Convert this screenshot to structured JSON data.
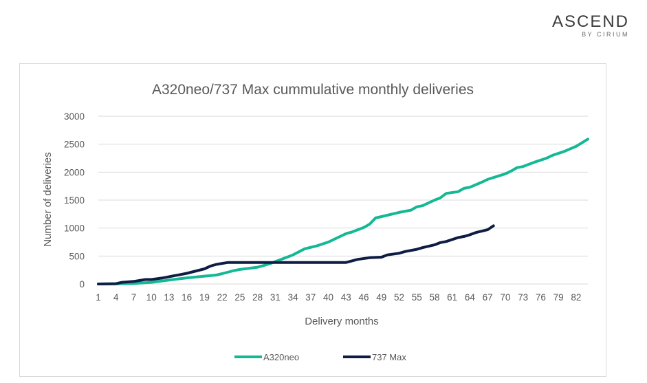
{
  "brand": {
    "name": "ASCEND",
    "sub": "BY CIRIUM"
  },
  "chart_data": {
    "type": "line",
    "title": "A320neo/737 Max cummulative monthly deliveries",
    "xlabel": "Delivery months",
    "ylabel": "Number of deliveries",
    "ylim": [
      0,
      3000
    ],
    "yticks": [
      0,
      500,
      1000,
      1500,
      2000,
      2500,
      3000
    ],
    "xlim": [
      1,
      84
    ],
    "xticks": [
      1,
      4,
      7,
      10,
      13,
      16,
      19,
      22,
      25,
      28,
      31,
      34,
      37,
      40,
      43,
      46,
      49,
      52,
      55,
      58,
      61,
      64,
      67,
      70,
      73,
      76,
      79,
      82
    ],
    "grid": "horizontal",
    "legend": "bottom",
    "series": [
      {
        "name": "A320neo",
        "color": "#14b894",
        "points": [
          [
            1,
            0
          ],
          [
            4,
            3
          ],
          [
            7,
            10
          ],
          [
            10,
            30
          ],
          [
            13,
            70
          ],
          [
            16,
            110
          ],
          [
            19,
            140
          ],
          [
            21,
            160
          ],
          [
            22,
            185
          ],
          [
            24,
            240
          ],
          [
            25,
            260
          ],
          [
            28,
            300
          ],
          [
            30,
            360
          ],
          [
            31,
            400
          ],
          [
            34,
            520
          ],
          [
            36,
            630
          ],
          [
            38,
            680
          ],
          [
            40,
            750
          ],
          [
            43,
            900
          ],
          [
            44,
            930
          ],
          [
            46,
            1010
          ],
          [
            47,
            1070
          ],
          [
            48,
            1180
          ],
          [
            50,
            1230
          ],
          [
            52,
            1280
          ],
          [
            54,
            1320
          ],
          [
            55,
            1380
          ],
          [
            56,
            1400
          ],
          [
            58,
            1500
          ],
          [
            59,
            1540
          ],
          [
            60,
            1620
          ],
          [
            62,
            1650
          ],
          [
            63,
            1710
          ],
          [
            64,
            1730
          ],
          [
            66,
            1820
          ],
          [
            67,
            1870
          ],
          [
            70,
            1970
          ],
          [
            71,
            2020
          ],
          [
            72,
            2080
          ],
          [
            73,
            2100
          ],
          [
            75,
            2180
          ],
          [
            77,
            2250
          ],
          [
            78,
            2300
          ],
          [
            80,
            2370
          ],
          [
            82,
            2460
          ],
          [
            84,
            2590
          ]
        ]
      },
      {
        "name": "737 Max",
        "color": "#0f1d45",
        "points": [
          [
            1,
            0
          ],
          [
            4,
            5
          ],
          [
            5,
            30
          ],
          [
            7,
            45
          ],
          [
            9,
            80
          ],
          [
            10,
            80
          ],
          [
            12,
            110
          ],
          [
            13,
            130
          ],
          [
            15,
            170
          ],
          [
            16,
            190
          ],
          [
            19,
            270
          ],
          [
            20,
            320
          ],
          [
            21,
            350
          ],
          [
            23,
            385
          ],
          [
            43,
            385
          ],
          [
            45,
            440
          ],
          [
            47,
            470
          ],
          [
            49,
            480
          ],
          [
            50,
            520
          ],
          [
            52,
            550
          ],
          [
            53,
            580
          ],
          [
            55,
            620
          ],
          [
            56,
            650
          ],
          [
            58,
            700
          ],
          [
            59,
            740
          ],
          [
            60,
            760
          ],
          [
            62,
            830
          ],
          [
            63,
            850
          ],
          [
            64,
            880
          ],
          [
            65,
            920
          ],
          [
            67,
            970
          ],
          [
            68,
            1040
          ]
        ]
      }
    ]
  }
}
